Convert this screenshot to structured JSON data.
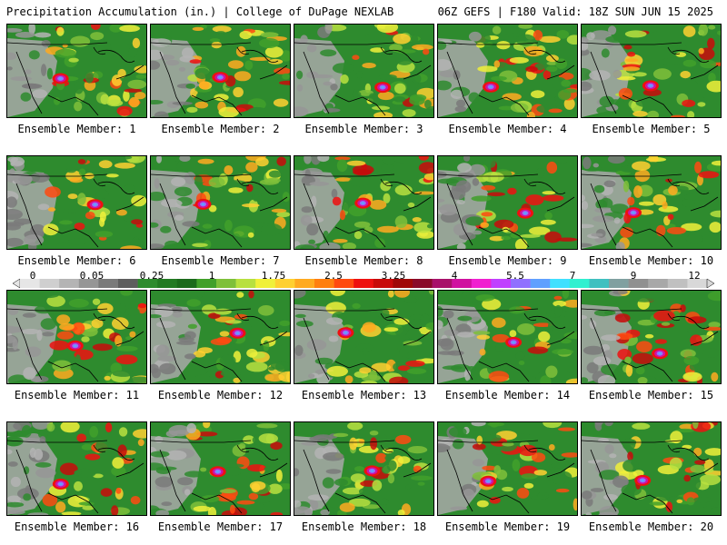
{
  "header": {
    "title_left": "Precipitation Accumulation (in.) | College of DuPage NEXLAB",
    "title_right": "06Z GEFS | F180 Valid: 18Z SUN JUN 15 2025"
  },
  "panels": [
    {
      "label": "Ensemble Member: 1",
      "seed": 11
    },
    {
      "label": "Ensemble Member: 2",
      "seed": 23
    },
    {
      "label": "Ensemble Member: 3",
      "seed": 37
    },
    {
      "label": "Ensemble Member: 4",
      "seed": 41
    },
    {
      "label": "Ensemble Member: 5",
      "seed": 53
    },
    {
      "label": "Ensemble Member: 6",
      "seed": 67
    },
    {
      "label": "Ensemble Member: 7",
      "seed": 71
    },
    {
      "label": "Ensemble Member: 8",
      "seed": 83
    },
    {
      "label": "Ensemble Member: 9",
      "seed": 97
    },
    {
      "label": "Ensemble Member: 10",
      "seed": 101
    },
    {
      "label": "Ensemble Member: 11",
      "seed": 113
    },
    {
      "label": "Ensemble Member: 12",
      "seed": 127
    },
    {
      "label": "Ensemble Member: 13",
      "seed": 131
    },
    {
      "label": "Ensemble Member: 14",
      "seed": 149
    },
    {
      "label": "Ensemble Member: 15",
      "seed": 151
    },
    {
      "label": "Ensemble Member: 16",
      "seed": 163
    },
    {
      "label": "Ensemble Member: 17",
      "seed": 173
    },
    {
      "label": "Ensemble Member: 18",
      "seed": 181
    },
    {
      "label": "Ensemble Member: 19",
      "seed": 191
    },
    {
      "label": "Ensemble Member: 20",
      "seed": 199
    }
  ],
  "colorbar": {
    "labels": [
      "0",
      "0.05",
      "0.25",
      "1",
      "1.75",
      "2.5",
      "3.25",
      "4",
      "5.5",
      "7",
      "9",
      "12"
    ],
    "colors": [
      "#e6e6e6",
      "#cfcfcf",
      "#b4b4b4",
      "#969696",
      "#7a7a7a",
      "#5e5e5e",
      "#2e8b2e",
      "#237a23",
      "#1b6a1b",
      "#41a02a",
      "#7fc03a",
      "#b8e040",
      "#f0f03a",
      "#ffd030",
      "#ffaa20",
      "#ff7f10",
      "#ff4a10",
      "#ee1010",
      "#c80a0a",
      "#a00808",
      "#8a0a2a",
      "#a8106a",
      "#d010a0",
      "#f020d0",
      "#c040ff",
      "#9070ff",
      "#60a0ff",
      "#40e0ff",
      "#30f0d0",
      "#40c0c0",
      "#80a0a0",
      "#909090",
      "#a8a8a8",
      "#c0c0c0",
      "#d8d8d8"
    ]
  }
}
